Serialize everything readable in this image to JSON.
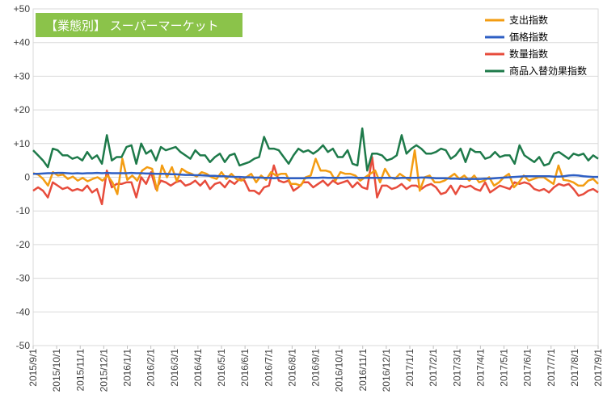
{
  "chart_data": {
    "type": "line",
    "title": "【業態別】 スーパーマーケット",
    "title_badge_color": "#8bc34a",
    "ylim": [
      -50,
      50
    ],
    "y_ticks": [
      "+50",
      "+40",
      "+30",
      "+20",
      "+10",
      "0",
      "-10",
      "-20",
      "-30",
      "-40",
      "-50"
    ],
    "y_tick_values": [
      50,
      40,
      30,
      20,
      10,
      0,
      -10,
      -20,
      -30,
      -40,
      -50
    ],
    "grid": true,
    "legend_position": "top-right",
    "x_labels": [
      "2015/9/1",
      "2015/10/1",
      "2015/11/1",
      "2015/12/1",
      "2016/1/1",
      "2016/2/1",
      "2016/3/1",
      "2016/4/1",
      "2016/5/1",
      "2016/6/1",
      "2016/7/1",
      "2016/8/1",
      "2016/9/1",
      "2016/10/1",
      "2016/11/1",
      "2016/12/1",
      "2017/1/1",
      "2017/2/1",
      "2017/3/1",
      "2017/4/1",
      "2017/5/1",
      "2017/6/1",
      "2017/7/1",
      "2017/8/1",
      "2017/9/1"
    ],
    "series": [
      {
        "name": "支出指数",
        "color": "#f39c12",
        "values": [
          1.2,
          0.8,
          -0.5,
          -2.5,
          1.5,
          0.5,
          0.8,
          -0.5,
          0.2,
          -1.0,
          -0.2,
          -1.2,
          -0.5,
          0,
          -1.0,
          0.5,
          -1.5,
          -5.0,
          5.5,
          -0.8,
          0.5,
          -1.0,
          2.0,
          3.0,
          2.5,
          -4.0,
          3.5,
          0,
          3.0,
          -1.2,
          2.5,
          1.5,
          1.0,
          0.2,
          1.5,
          1.0,
          0,
          -0.5,
          1.5,
          -0.5,
          1.0,
          -0.5,
          -1.0,
          0,
          1.0,
          -1.5,
          0.5,
          -0.8,
          1.5,
          0.5,
          1.0,
          1.0,
          -2.0,
          -2.0,
          -2.5,
          0,
          0.5,
          5.5,
          2.0,
          2.0,
          1.5,
          -1.0,
          1.5,
          1.0,
          1.0,
          0.5,
          -1.0,
          0,
          1.0,
          2.0,
          -1.5,
          2.5,
          0,
          -0.5,
          1.0,
          0,
          -1.0,
          8.0,
          -4.0,
          0,
          0.5,
          -1.5,
          -1.5,
          -1.0,
          0,
          1.0,
          -0.5,
          0.5,
          -1.0,
          0.5,
          -1.5,
          -1.0,
          0,
          -2.5,
          -1.5,
          0,
          1.0,
          -3.0,
          -1.5,
          0.5,
          -1.0,
          -0.5,
          0,
          0,
          -1.0,
          -2.0,
          3.5,
          -0.8,
          -1.0,
          -1.5,
          -2.5,
          -2.5,
          -1.0,
          -0.5,
          -2.0
        ]
      },
      {
        "name": "価格指数",
        "color": "#2e5fc4",
        "values": [
          1.0,
          1.0,
          1.1,
          1.2,
          1.2,
          1.3,
          1.3,
          1.2,
          1.1,
          1.2,
          1.1,
          1.2,
          1.2,
          1.3,
          1.2,
          1.3,
          1.2,
          1.2,
          1.2,
          1.2,
          1.3,
          1.2,
          1.2,
          1.1,
          1.1,
          1.0,
          1.0,
          1.0,
          0.9,
          0.9,
          0.8,
          0.7,
          0.7,
          0.6,
          0.6,
          0.5,
          0.4,
          0.4,
          0.3,
          0.3,
          0.2,
          0.1,
          0.1,
          0,
          0,
          -0.1,
          -0.1,
          -0.2,
          -0.2,
          -0.3,
          -0.2,
          -0.2,
          -0.3,
          -0.3,
          -0.3,
          -0.3,
          -0.2,
          -0.2,
          -0.2,
          -0.1,
          -0.2,
          -0.2,
          -0.2,
          -0.2,
          -0.1,
          -0.1,
          -0.2,
          -0.2,
          -0.2,
          -0.2,
          -0.2,
          -0.2,
          -0.2,
          -0.2,
          -0.3,
          -0.2,
          -0.2,
          -0.2,
          -0.2,
          -0.1,
          -0.1,
          -0.2,
          -0.3,
          -0.3,
          -0.3,
          -0.4,
          -0.4,
          -0.5,
          -0.5,
          -0.5,
          -0.5,
          -0.5,
          -0.4,
          -0.4,
          -0.3,
          -0.2,
          -0.1,
          0,
          0.1,
          0.2,
          0.3,
          0.3,
          0.3,
          0.3,
          0.3,
          0.3,
          0.2,
          0.2,
          0.3,
          0.5,
          0.6,
          0.5,
          0.3,
          0.2,
          0.1,
          0.1
        ]
      },
      {
        "name": "数量指数",
        "color": "#e74c3c",
        "values": [
          -4.0,
          -3.0,
          -4.0,
          -6.0,
          -1.5,
          -2.5,
          -3.5,
          -3.0,
          -4.0,
          -3.5,
          -4.0,
          -2.5,
          -4.5,
          -3.5,
          -8.0,
          2.0,
          -3.0,
          -2.0,
          -2.0,
          -1.5,
          -1.5,
          -6.0,
          0,
          -2.0,
          1.5,
          -3.5,
          -1.0,
          -1.5,
          -2.5,
          -1.5,
          -1.0,
          -2.5,
          -2.0,
          -1.0,
          -2.5,
          -1.0,
          -3.5,
          -2.0,
          -1.5,
          -3.0,
          -1.0,
          -2.0,
          -0.5,
          -1.0,
          -4.0,
          -4.0,
          -5.0,
          -3.0,
          -2.5,
          3.5,
          -1.0,
          -1.5,
          -1.0,
          -4.0,
          -3.0,
          -1.5,
          -1.5,
          -3.0,
          -2.0,
          -1.0,
          -2.5,
          -1.0,
          -2.0,
          -1.5,
          -1.0,
          -3.0,
          -1.5,
          -3.0,
          -3.5,
          6.0,
          -6.0,
          -2.5,
          -2.5,
          -3.5,
          -3.0,
          -2.0,
          -3.5,
          -2.5,
          -2.5,
          -3.5,
          -2.5,
          -2.0,
          -3.0,
          -5.0,
          -4.5,
          -2.5,
          -5.0,
          -2.5,
          -3.0,
          -2.5,
          -3.5,
          -4.0,
          -1.5,
          -4.5,
          -3.5,
          -2.5,
          -3.0,
          -3.5,
          -1.5,
          -2.0,
          -1.5,
          -2.0,
          -3.5,
          -4.0,
          -3.5,
          -4.5,
          -3.0,
          -2.0,
          -2.5,
          -2.0,
          -3.5,
          -5.5,
          -5.0,
          -4.0,
          -3.5,
          -4.5
        ]
      },
      {
        "name": "商品入替効果指数",
        "color": "#1e7a4a",
        "values": [
          8.0,
          6.5,
          5.0,
          3.0,
          8.5,
          8.0,
          6.5,
          6.5,
          5.5,
          6.0,
          5.0,
          7.5,
          5.5,
          6.5,
          4.0,
          12.5,
          5.0,
          6.0,
          6.0,
          9.0,
          9.5,
          4.0,
          10.0,
          7.0,
          8.0,
          5.0,
          9.0,
          8.0,
          8.5,
          9.0,
          7.5,
          6.5,
          5.5,
          8.0,
          6.5,
          6.5,
          4.5,
          6.0,
          7.0,
          4.5,
          6.5,
          7.0,
          3.5,
          4.0,
          4.5,
          5.5,
          6.0,
          12.0,
          8.5,
          8.5,
          8.0,
          6.0,
          4.0,
          6.5,
          8.5,
          7.5,
          8.0,
          7.0,
          8.0,
          9.5,
          7.5,
          8.5,
          6.0,
          6.0,
          8.0,
          4.0,
          3.5,
          14.5,
          2.0,
          7.0,
          7.0,
          6.5,
          5.0,
          5.5,
          6.5,
          12.5,
          7.0,
          8.5,
          9.5,
          8.5,
          7.0,
          7.0,
          7.5,
          8.5,
          8.0,
          5.5,
          6.5,
          8.5,
          4.5,
          8.5,
          7.5,
          7.5,
          5.5,
          6.0,
          7.5,
          6.0,
          6.5,
          6.5,
          4.0,
          9.5,
          6.5,
          5.5,
          4.5,
          6.0,
          3.5,
          4.0,
          7.0,
          7.5,
          6.5,
          5.5,
          7.0,
          6.5,
          7.0,
          5.0,
          6.5,
          5.5
        ]
      }
    ]
  }
}
